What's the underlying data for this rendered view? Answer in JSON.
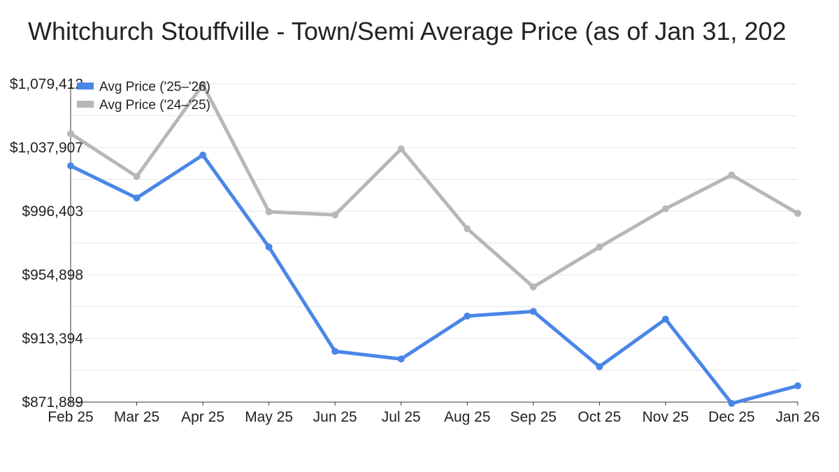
{
  "chart_data": {
    "type": "line",
    "title": "Whitchurch Stouffville - Town/Semi Average Price (as of Jan 31, 202",
    "categories": [
      "Feb 25",
      "Mar 25",
      "Apr 25",
      "May 25",
      "Jun 25",
      "Jul 25",
      "Aug 25",
      "Sep 25",
      "Oct 25",
      "Nov 25",
      "Dec 25",
      "Jan 26"
    ],
    "y_ticks": [
      871889,
      913394,
      954898,
      996403,
      1037907,
      1079412
    ],
    "y_tick_labels": [
      "$871,889",
      "$913,394",
      "$954,898",
      "$996,403",
      "$1,037,907",
      "$1,079,412"
    ],
    "ylim": [
      871889,
      1079412
    ],
    "grid": true,
    "legend": "top-left",
    "series": [
      {
        "name": "Avg Price ('25–'26)",
        "color": "#4a86e8",
        "values": [
          1026000,
          1005000,
          1033000,
          973000,
          905000,
          900000,
          928000,
          931000,
          895000,
          926000,
          871000,
          882500
        ]
      },
      {
        "name": "Avg Price ('24–'25)",
        "color": "#b7b7b7",
        "values": [
          1047000,
          1019000,
          1079000,
          996000,
          994000,
          1037000,
          985000,
          947000,
          973000,
          998000,
          1020000,
          995000
        ]
      }
    ]
  }
}
